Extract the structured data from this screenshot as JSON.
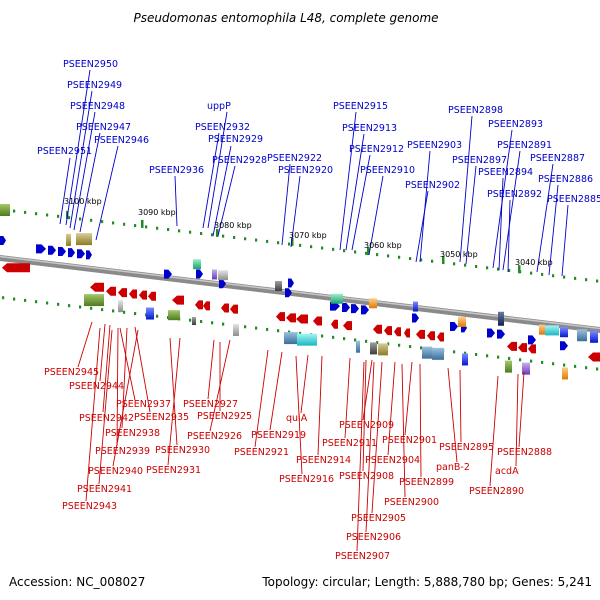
{
  "title": "Pseudomonas entomophila L48, complete genome",
  "footer": {
    "accession": "Accession: NC_008027",
    "summary": "Topology: circular; Length: 5,888,780 bp; Genes: 5,241"
  },
  "colors": {
    "forward": "#0000cc",
    "reverse": "#cc0000",
    "backbone": "#888888",
    "tick": "#228b22"
  },
  "scale_labels": [
    "3100 kbp",
    "3090 kbp",
    "3080 kbp",
    "3070 kbp",
    "3060 kbp",
    "3050 kbp",
    "3040 kbp"
  ],
  "forward_labels": [
    "PSEEN2950",
    "PSEEN2949",
    "PSEEN2948",
    "PSEEN2947",
    "PSEEN2946",
    "PSEEN2951",
    "uppP",
    "PSEEN2932",
    "PSEEN2929",
    "PSEEN2928",
    "PSEEN2936",
    "PSEEN2915",
    "PSEEN2913",
    "PSEEN2912",
    "PSEEN2922",
    "PSEEN2920",
    "PSEEN2910",
    "PSEEN2898",
    "PSEEN2893",
    "PSEEN2903",
    "PSEEN2891",
    "PSEEN2897",
    "PSEEN2887",
    "PSEEN2894",
    "PSEEN2886",
    "PSEEN2902",
    "PSEEN2892",
    "PSEEN2885"
  ],
  "reverse_labels": [
    "PSEEN2945",
    "PSEEN2944",
    "PSEEN2937",
    "PSEEN2942",
    "PSEEN2935",
    "PSEEN2927",
    "PSEEN2925",
    "PSEEN2938",
    "PSEEN2926",
    "PSEEN2939",
    "PSEEN2930",
    "PSEEN2940",
    "PSEEN2931",
    "PSEEN2941",
    "PSEEN2943",
    "quiA",
    "PSEEN2919",
    "PSEEN2921",
    "PSEEN2914",
    "PSEEN2916",
    "PSEEN2909",
    "PSEEN2911",
    "PSEEN2901",
    "PSEEN2904",
    "PSEEN2908",
    "PSEEN2895",
    "PSEEN2888",
    "panB-2",
    "acdA",
    "PSEEN2899",
    "PSEEN2890",
    "PSEEN2900",
    "PSEEN2905",
    "PSEEN2906",
    "PSEEN2907"
  ]
}
